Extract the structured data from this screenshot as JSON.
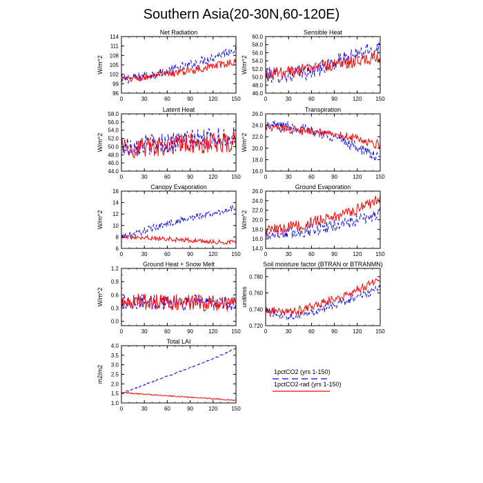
{
  "title": "Southern Asia(20-30N,60-120E)",
  "colors": {
    "series_1": "#0000ff",
    "series_2": "#ff0000",
    "axis": "#000000"
  },
  "legend": {
    "entries": [
      {
        "label": "1pctCO2 (yrs 1-150)",
        "color": "#0000ff",
        "style": "dashed"
      },
      {
        "label": "1pctCO2-rad (yrs 1-150)",
        "color": "#ff0000",
        "style": "solid"
      }
    ]
  },
  "chart_data": [
    {
      "type": "line",
      "title": "Net Radiation",
      "ylabel": "W/m^2",
      "xlim": [
        0,
        150
      ],
      "xticks": [
        0,
        30,
        60,
        90,
        120,
        150
      ],
      "ylim": [
        96,
        114
      ],
      "yticks": [
        96,
        99,
        102,
        105,
        108,
        111,
        114
      ],
      "ytick_decimals": 0,
      "x": [
        0,
        15,
        30,
        45,
        60,
        75,
        90,
        105,
        120,
        135,
        150
      ],
      "series": [
        {
          "values": [
            100.5,
            100.8,
            101.5,
            102.2,
            103.0,
            104.0,
            105.0,
            106.2,
            107.5,
            108.8,
            110.2
          ],
          "noise": 1.5
        },
        {
          "values": [
            100.3,
            100.6,
            101.0,
            101.5,
            102.0,
            102.6,
            103.2,
            103.9,
            104.6,
            105.3,
            106.0
          ],
          "noise": 1.2
        }
      ]
    },
    {
      "type": "line",
      "title": "Sensible Heat",
      "ylabel": "W/m^2",
      "xlim": [
        0,
        150
      ],
      "xticks": [
        0,
        30,
        60,
        90,
        120,
        150
      ],
      "ylim": [
        46,
        60
      ],
      "yticks": [
        46.0,
        48.0,
        50.0,
        52.0,
        54.0,
        56.0,
        58.0,
        60.0
      ],
      "ytick_decimals": 1,
      "x": [
        0,
        15,
        30,
        45,
        60,
        75,
        90,
        105,
        120,
        135,
        150
      ],
      "series": [
        {
          "values": [
            50.5,
            50.3,
            50.5,
            51.0,
            51.5,
            52.5,
            53.5,
            54.5,
            55.5,
            56.5,
            57.5
          ],
          "noise": 2.0
        },
        {
          "values": [
            51.0,
            51.0,
            51.3,
            51.6,
            52.0,
            52.5,
            53.0,
            53.5,
            54.0,
            54.5,
            55.0
          ],
          "noise": 1.6
        }
      ]
    },
    {
      "type": "line",
      "title": "Latent Heat",
      "ylabel": "W/m^2",
      "xlim": [
        0,
        150
      ],
      "xticks": [
        0,
        30,
        60,
        90,
        120,
        150
      ],
      "ylim": [
        44,
        58
      ],
      "yticks": [
        44.0,
        46.0,
        48.0,
        50.0,
        52.0,
        54.0,
        56.0,
        58.0
      ],
      "ytick_decimals": 1,
      "x": [
        0,
        15,
        30,
        45,
        60,
        75,
        90,
        105,
        120,
        135,
        150
      ],
      "series": [
        {
          "values": [
            50.0,
            50.2,
            50.5,
            50.7,
            51.0,
            51.2,
            51.5,
            51.7,
            52.0,
            52.2,
            52.5
          ],
          "noise": 2.6
        },
        {
          "values": [
            49.5,
            49.8,
            50.0,
            50.2,
            50.3,
            50.5,
            50.6,
            50.8,
            51.0,
            51.0,
            51.2
          ],
          "noise": 2.6
        }
      ]
    },
    {
      "type": "line",
      "title": "Transpiration",
      "ylabel": "W/m^2",
      "xlim": [
        0,
        150
      ],
      "xticks": [
        0,
        30,
        60,
        90,
        120,
        150
      ],
      "ylim": [
        16,
        26
      ],
      "yticks": [
        16.0,
        18.0,
        20.0,
        22.0,
        24.0,
        26.0
      ],
      "ytick_decimals": 1,
      "x": [
        0,
        15,
        30,
        45,
        60,
        75,
        90,
        105,
        120,
        135,
        150
      ],
      "series": [
        {
          "values": [
            24.0,
            24.0,
            23.8,
            23.5,
            23.0,
            22.5,
            22.0,
            21.0,
            20.2,
            19.2,
            18.0
          ],
          "noise": 0.9
        },
        {
          "values": [
            23.5,
            23.5,
            23.3,
            23.1,
            22.9,
            22.6,
            22.3,
            22.0,
            21.6,
            21.1,
            20.5
          ],
          "noise": 0.8
        }
      ]
    },
    {
      "type": "line",
      "title": "Canopy Evaporation",
      "ylabel": "W/m^2",
      "xlim": [
        0,
        150
      ],
      "xticks": [
        0,
        30,
        60,
        90,
        120,
        150
      ],
      "ylim": [
        6,
        16
      ],
      "yticks": [
        6,
        8,
        10,
        12,
        14,
        16
      ],
      "ytick_decimals": 0,
      "x": [
        0,
        15,
        30,
        45,
        60,
        75,
        90,
        105,
        120,
        135,
        150
      ],
      "series": [
        {
          "values": [
            8.0,
            8.4,
            9.1,
            9.7,
            10.3,
            10.8,
            11.3,
            11.7,
            12.1,
            12.6,
            13.1
          ],
          "noise": 0.6
        },
        {
          "values": [
            8.2,
            8.0,
            7.9,
            7.8,
            7.7,
            7.5,
            7.4,
            7.3,
            7.2,
            7.1,
            7.0
          ],
          "noise": 0.4
        }
      ]
    },
    {
      "type": "line",
      "title": "Ground Evaporation",
      "ylabel": "W/m^2",
      "xlim": [
        0,
        150
      ],
      "xticks": [
        0,
        30,
        60,
        90,
        120,
        150
      ],
      "ylim": [
        14,
        26
      ],
      "yticks": [
        14.0,
        16.0,
        18.0,
        20.0,
        22.0,
        24.0,
        26.0
      ],
      "ytick_decimals": 1,
      "x": [
        0,
        15,
        30,
        45,
        60,
        75,
        90,
        105,
        120,
        135,
        150
      ],
      "series": [
        {
          "values": [
            17.0,
            17.0,
            17.2,
            17.5,
            17.8,
            18.2,
            18.8,
            19.3,
            19.8,
            20.5,
            21.5
          ],
          "noise": 1.3
        },
        {
          "values": [
            17.8,
            18.0,
            18.5,
            19.0,
            19.5,
            20.0,
            20.6,
            21.3,
            22.2,
            23.2,
            24.5
          ],
          "noise": 1.2
        }
      ]
    },
    {
      "type": "line",
      "title": "Ground Heat + Snow Melt",
      "ylabel": "W/m^2",
      "xlim": [
        0,
        150
      ],
      "xticks": [
        0,
        30,
        60,
        90,
        120,
        150
      ],
      "ylim": [
        -0.1,
        1.2
      ],
      "yticks": [
        0.0,
        0.3,
        0.6,
        0.9,
        1.2
      ],
      "ytick_decimals": 1,
      "extra_yticks": [
        0.15,
        0.45,
        0.75,
        1.05
      ],
      "x": [
        0,
        15,
        30,
        45,
        60,
        75,
        90,
        105,
        120,
        135,
        150
      ],
      "series": [
        {
          "values": [
            0.45,
            0.45,
            0.44,
            0.44,
            0.43,
            0.43,
            0.42,
            0.42,
            0.41,
            0.41,
            0.4
          ],
          "noise": 0.18
        },
        {
          "values": [
            0.45,
            0.45,
            0.44,
            0.44,
            0.44,
            0.43,
            0.43,
            0.42,
            0.42,
            0.41,
            0.41
          ],
          "noise": 0.18
        }
      ]
    },
    {
      "type": "line",
      "title": "Soil moisture factor (BTRAN or BTRANMN)",
      "ylabel": "unitless",
      "xlim": [
        0,
        150
      ],
      "xticks": [
        0,
        30,
        60,
        90,
        120,
        150
      ],
      "ylim": [
        0.72,
        0.79
      ],
      "yticks": [
        0.72,
        0.74,
        0.76,
        0.78
      ],
      "ytick_decimals": 3,
      "x": [
        0,
        15,
        30,
        45,
        60,
        75,
        90,
        105,
        120,
        135,
        150
      ],
      "series": [
        {
          "values": [
            0.738,
            0.734,
            0.732,
            0.734,
            0.737,
            0.741,
            0.745,
            0.75,
            0.755,
            0.76,
            0.766
          ],
          "noise": 0.005
        },
        {
          "values": [
            0.74,
            0.738,
            0.737,
            0.739,
            0.743,
            0.748,
            0.753,
            0.758,
            0.764,
            0.77,
            0.778
          ],
          "noise": 0.005
        }
      ]
    },
    {
      "type": "line",
      "title": "Total LAI",
      "ylabel": "m2/m2",
      "xlim": [
        0,
        150
      ],
      "xticks": [
        0,
        30,
        60,
        90,
        120,
        150
      ],
      "ylim": [
        1.0,
        4.0
      ],
      "yticks": [
        1.0,
        1.5,
        2.0,
        2.5,
        3.0,
        3.5,
        4.0
      ],
      "ytick_decimals": 1,
      "x": [
        0,
        15,
        30,
        45,
        60,
        75,
        90,
        105,
        120,
        135,
        150
      ],
      "series": [
        {
          "values": [
            1.5,
            1.72,
            1.95,
            2.18,
            2.4,
            2.62,
            2.85,
            3.08,
            3.32,
            3.58,
            3.88
          ],
          "noise": 0.03
        },
        {
          "values": [
            1.55,
            1.5,
            1.46,
            1.42,
            1.38,
            1.34,
            1.3,
            1.26,
            1.22,
            1.18,
            1.13
          ],
          "noise": 0.03
        }
      ]
    }
  ]
}
